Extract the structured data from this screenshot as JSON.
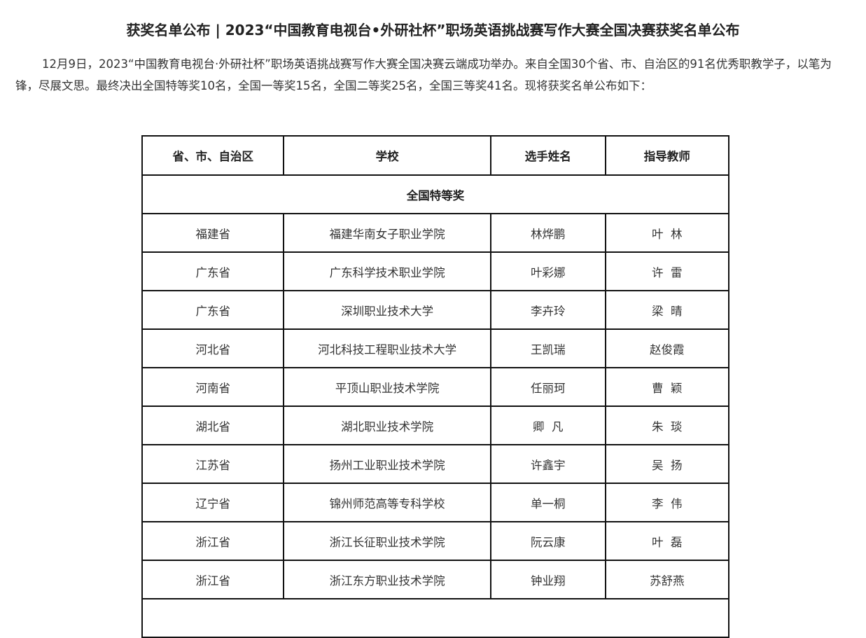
{
  "article": {
    "title": "获奖名单公布 | 2023“中国教育电视台•外研社杯”职场英语挑战赛写作大赛全国决赛获奖名单公布",
    "intro": "12月9日，2023“中国教育电视台·外研社杯”职场英语挑战赛写作大赛全国决赛云端成功举办。来自全国30个省、市、自治区的91名优秀职教学子，以笔为锋，尽展文思。最终决出全国特等奖10名，全国一等奖15名，全国二等奖25名，全国三等奖41名。现将获奖名单公布如下："
  },
  "table": {
    "headers": [
      "省、市、自治区",
      "学校",
      "选手姓名",
      "指导教师"
    ],
    "award_section": "全国特等奖",
    "rows": [
      [
        "福建省",
        "福建华南女子职业学院",
        "林烨鹏",
        "叶  林"
      ],
      [
        "广东省",
        "广东科学技术职业学院",
        "叶彩娜",
        "许  雷"
      ],
      [
        "广东省",
        "深圳职业技术大学",
        "李卉玲",
        "梁  晴"
      ],
      [
        "河北省",
        "河北科技工程职业技术大学",
        "王凯瑞",
        "赵俊霞"
      ],
      [
        "河南省",
        "平顶山职业技术学院",
        "任丽珂",
        "曹  颖"
      ],
      [
        "湖北省",
        "湖北职业技术学院",
        "卿  凡",
        "朱  琰"
      ],
      [
        "江苏省",
        "扬州工业职业技术学院",
        "许鑫宇",
        "吴  扬"
      ],
      [
        "辽宁省",
        "锦州师范高等专科学校",
        "单一桐",
        "李  伟"
      ],
      [
        "浙江省",
        "浙江长征职业技术学院",
        "阮云康",
        "叶  磊"
      ],
      [
        "浙江省",
        "浙江东方职业技术学院",
        "钟业翔",
        "苏舒燕"
      ]
    ]
  }
}
